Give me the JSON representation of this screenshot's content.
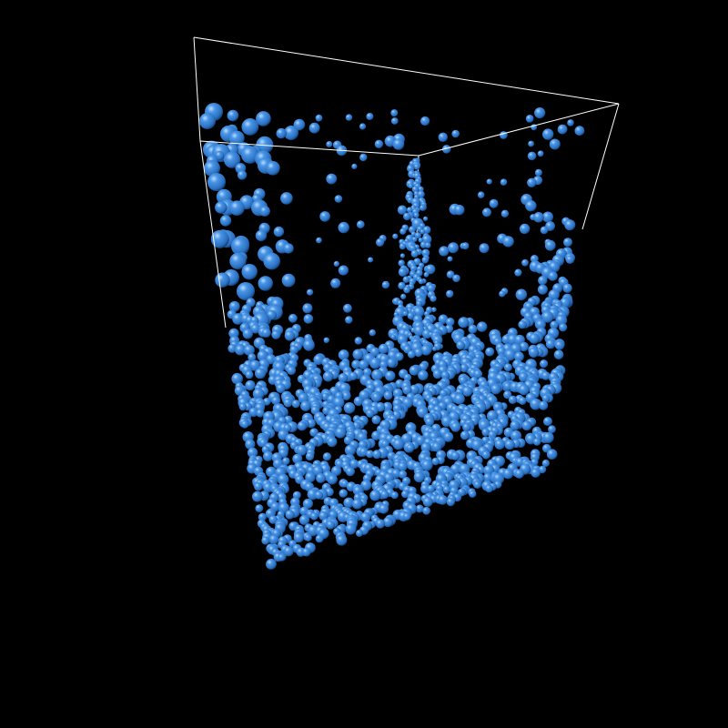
{
  "scene": {
    "background_color": "#000000",
    "particle_color": "#2f7fd6",
    "particle_highlight_color": "#8fc4ff",
    "particle_shadow_color": "#123a66",
    "box_edge_color": "#ffffff"
  }
}
